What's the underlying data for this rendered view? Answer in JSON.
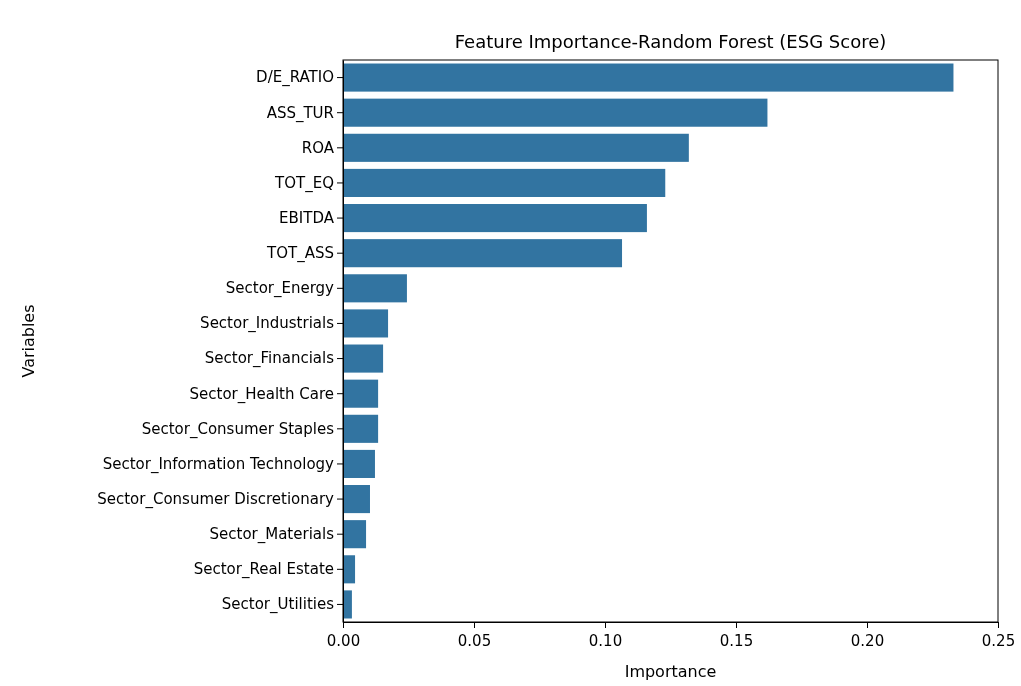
{
  "chart_data": {
    "type": "bar",
    "orientation": "horizontal",
    "title": "Feature Importance-Random Forest (ESG Score)",
    "xlabel": "Importance",
    "ylabel": "Variables",
    "categories": [
      "D/E_RATIO",
      "ASS_TUR",
      "ROA",
      "TOT_EQ",
      "EBITDA",
      "TOT_ASS",
      "Sector_Energy",
      "Sector_Industrials",
      "Sector_Financials",
      "Sector_Health Care",
      "Sector_Consumer Staples",
      "Sector_Information Technology",
      "Sector_Consumer Discretionary",
      "Sector_Materials",
      "Sector_Real Estate",
      "Sector_Utilities"
    ],
    "values": [
      0.233,
      0.162,
      0.132,
      0.123,
      0.116,
      0.1065,
      0.0244,
      0.0172,
      0.0153,
      0.0134,
      0.0134,
      0.0122,
      0.0103,
      0.0088,
      0.0046,
      0.0034
    ],
    "color": "#3274a1",
    "xlim": [
      0,
      0.25
    ],
    "xticks": [
      {
        "value": 0,
        "label": "0.00"
      },
      {
        "value": 0.05,
        "label": "0.05"
      },
      {
        "value": 0.1,
        "label": "0.10"
      },
      {
        "value": 0.15,
        "label": "0.15"
      },
      {
        "value": 0.2,
        "label": "0.20"
      },
      {
        "value": 0.25,
        "label": "0.25"
      }
    ]
  }
}
